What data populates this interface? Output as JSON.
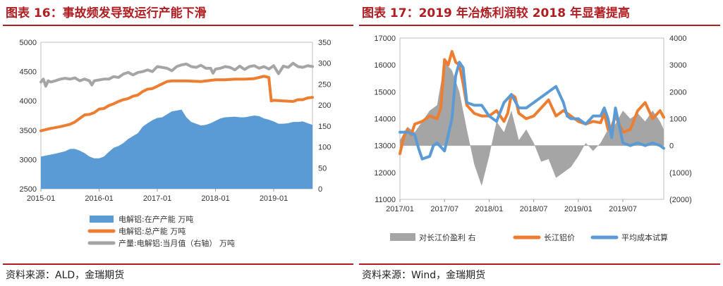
{
  "left": {
    "title": "图表 16：事故频发导致运行产能下滑",
    "source": "资料来源：ALD，金瑞期货",
    "chart_data": {
      "type": "area",
      "x_tick_labels": [
        "2015-01",
        "2016-01",
        "2017-01",
        "2018-01",
        "2019-01"
      ],
      "x_tick_values": [
        0,
        12,
        24,
        36,
        48
      ],
      "x_range": [
        0,
        56
      ],
      "ylim_left": [
        2500,
        5000
      ],
      "yticks_left": [
        "2500",
        "3000",
        "3500",
        "4000",
        "4500",
        "5000"
      ],
      "ylim_right": [
        0,
        350
      ],
      "yticks_right": [
        "0",
        "50",
        "100",
        "150",
        "200",
        "250",
        "300",
        "350"
      ],
      "series": [
        {
          "name": "电解铝:在产产能 万吨",
          "type": "area",
          "color": "#5b9bd5",
          "axis": "left",
          "x": [
            0,
            3,
            5,
            6,
            7,
            8,
            9,
            10,
            11,
            12,
            13,
            14,
            15,
            16,
            17,
            18,
            20,
            21,
            22,
            23,
            24,
            25,
            27,
            29,
            30,
            31,
            32,
            33,
            34,
            35,
            36,
            37,
            38,
            40,
            41,
            42,
            44,
            45,
            46,
            47,
            48,
            49,
            50,
            51,
            52,
            53,
            54,
            55,
            56
          ],
          "values": [
            3050,
            3100,
            3140,
            3180,
            3180,
            3150,
            3110,
            3050,
            3020,
            3020,
            3050,
            3130,
            3200,
            3230,
            3280,
            3350,
            3450,
            3560,
            3620,
            3670,
            3710,
            3720,
            3820,
            3850,
            3720,
            3640,
            3610,
            3580,
            3590,
            3620,
            3660,
            3700,
            3720,
            3730,
            3720,
            3720,
            3750,
            3740,
            3700,
            3680,
            3650,
            3610,
            3610,
            3620,
            3640,
            3640,
            3650,
            3620,
            3590
          ]
        },
        {
          "name": "电解铝:总产能 万吨",
          "type": "line",
          "color": "#ed7d31",
          "axis": "left",
          "x": [
            0,
            2,
            4,
            6,
            7,
            8,
            9,
            10,
            11,
            12,
            13,
            14,
            15,
            16,
            17,
            18,
            19,
            20,
            21,
            22,
            23,
            24,
            25,
            26,
            27,
            28,
            30,
            33,
            36,
            38,
            40,
            42,
            44,
            46,
            47,
            47.5,
            48,
            50,
            52,
            53,
            54,
            55,
            56
          ],
          "values": [
            3490,
            3530,
            3560,
            3600,
            3640,
            3700,
            3760,
            3770,
            3800,
            3860,
            3870,
            3920,
            3950,
            3990,
            4020,
            4040,
            4080,
            4100,
            4160,
            4200,
            4210,
            4250,
            4290,
            4330,
            4340,
            4340,
            4340,
            4330,
            4360,
            4360,
            4370,
            4370,
            4380,
            4420,
            4400,
            4000,
            4010,
            4000,
            3990,
            4020,
            4020,
            4050,
            4060
          ]
        },
        {
          "name": "产量:电解铝:当月值（右轴） 万吨",
          "type": "line",
          "color": "#a5a5a5",
          "axis": "right",
          "x": [
            0,
            0.5,
            1,
            1.5,
            2,
            3,
            4,
            5,
            6,
            7,
            8,
            9,
            10,
            10.5,
            11,
            12,
            13,
            14,
            15,
            16,
            17,
            18,
            19,
            20,
            21,
            22,
            23,
            24,
            25,
            26,
            27,
            28,
            29,
            30,
            31,
            32,
            33,
            34,
            35,
            35.5,
            36,
            37,
            38,
            39,
            40,
            41,
            42,
            43,
            44,
            45,
            46,
            47,
            48,
            49,
            50,
            51,
            52,
            53,
            54,
            55,
            56
          ],
          "values": [
            255,
            262,
            245,
            258,
            255,
            258,
            262,
            264,
            262,
            265,
            258,
            262,
            258,
            248,
            258,
            260,
            262,
            262,
            268,
            266,
            274,
            278,
            272,
            278,
            280,
            284,
            280,
            292,
            290,
            288,
            282,
            292,
            296,
            298,
            292,
            290,
            295,
            288,
            288,
            276,
            286,
            288,
            292,
            290,
            284,
            293,
            285,
            292,
            294,
            288,
            292,
            286,
            294,
            275,
            293,
            290,
            300,
            292,
            290,
            294,
            292
          ]
        }
      ]
    }
  },
  "right": {
    "title": "图表 17：2019 年冶炼利润较 2018 年显著提高",
    "source": "资料来源：Wind，金瑞期货",
    "chart_data": {
      "type": "line",
      "x_tick_labels": [
        "2017/01",
        "2017/07",
        "2018/01",
        "2018/07",
        "2019/01",
        "2019/07"
      ],
      "x_tick_values": [
        0,
        6,
        12,
        18,
        24,
        30
      ],
      "x_range": [
        0,
        35.5
      ],
      "ylim_left": [
        11000,
        17000
      ],
      "yticks_left": [
        "11000",
        "12000",
        "13000",
        "14000",
        "15000",
        "16000",
        "17000"
      ],
      "ylim_right": [
        -2000,
        4000
      ],
      "yticks_right": [
        "(2000)",
        "(1000)",
        "0",
        "1000",
        "2000",
        "3000",
        "4000"
      ],
      "negative_color": "#c00000",
      "series": [
        {
          "name": "对长江价盈利 右",
          "type": "area",
          "color": "#a5a5a5",
          "axis": "right",
          "x": [
            0,
            1,
            2,
            3,
            4,
            5,
            6,
            7,
            8,
            9,
            10,
            11,
            12,
            13,
            14,
            15,
            16,
            17,
            18,
            19,
            20,
            21,
            22,
            23,
            24,
            25,
            26,
            27,
            28,
            29,
            30,
            31,
            32,
            33,
            34,
            35,
            35.5
          ],
          "values": [
            200,
            700,
            500,
            900,
            1300,
            1500,
            3100,
            2800,
            2000,
            600,
            -700,
            -1500,
            -400,
            900,
            500,
            1300,
            200,
            600,
            100,
            -600,
            -500,
            -1200,
            -1000,
            -800,
            -400,
            100,
            -200,
            100,
            600,
            800,
            1300,
            1000,
            1200,
            900,
            1300,
            900,
            600
          ]
        },
        {
          "name": "长江铝价",
          "type": "line",
          "color": "#ed7d31",
          "axis": "left",
          "x": [
            0,
            0.5,
            1,
            1.5,
            2,
            3,
            4,
            5,
            5.5,
            6,
            6.5,
            7,
            7.5,
            8,
            8.5,
            9,
            10,
            11,
            12,
            13,
            14,
            14.5,
            15,
            15.5,
            16,
            17,
            18,
            19,
            20,
            21,
            22,
            23,
            24,
            25,
            26,
            27,
            27.5,
            28,
            28.5,
            29,
            30,
            31,
            32,
            33,
            34,
            35,
            35.5
          ],
          "values": [
            12700,
            13300,
            13600,
            13400,
            13800,
            13900,
            14100,
            14000,
            14400,
            16200,
            16000,
            16500,
            16100,
            16000,
            15300,
            14500,
            14200,
            14100,
            14100,
            14300,
            13900,
            14200,
            14900,
            14800,
            14200,
            14000,
            14100,
            14400,
            14700,
            14100,
            14300,
            14100,
            13900,
            13800,
            13900,
            13850,
            14200,
            13600,
            13700,
            14100,
            13500,
            13600,
            14300,
            14600,
            14000,
            14300,
            14050
          ]
        },
        {
          "name": "平均成本试算",
          "type": "line",
          "color": "#5b9bd5",
          "axis": "left",
          "x": [
            0,
            1,
            2,
            2.5,
            3,
            4,
            4.5,
            5,
            6,
            6.5,
            7,
            7.5,
            8,
            8.5,
            9,
            10,
            11,
            12,
            13,
            14,
            15,
            16,
            17,
            18,
            19,
            20,
            21,
            22,
            22.5,
            23,
            24,
            25,
            26,
            27,
            27.5,
            28,
            28.5,
            29,
            30,
            31,
            32,
            33,
            34,
            35,
            35.5
          ],
          "values": [
            13500,
            13500,
            13400,
            12900,
            12500,
            12600,
            13000,
            13100,
            12800,
            13400,
            14000,
            15600,
            16100,
            15900,
            14600,
            14500,
            14500,
            14100,
            13900,
            14600,
            14900,
            14400,
            14400,
            14600,
            14800,
            15000,
            15200,
            14600,
            14100,
            14000,
            14000,
            13800,
            14100,
            14100,
            14400,
            14000,
            13300,
            14400,
            13100,
            13000,
            13100,
            13000,
            13100,
            13000,
            12900
          ]
        }
      ]
    }
  }
}
